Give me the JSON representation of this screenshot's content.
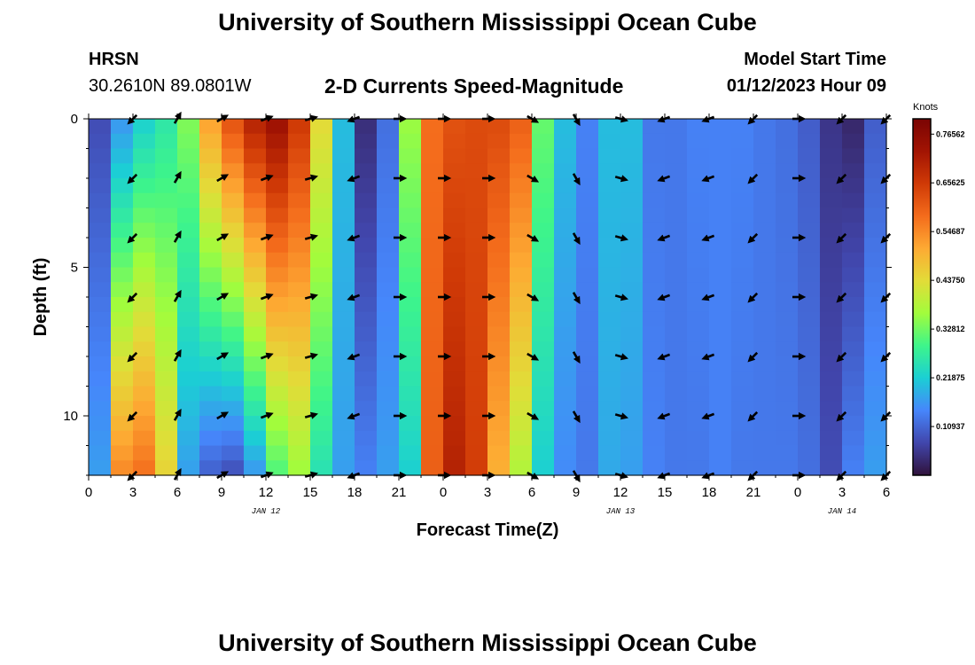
{
  "page": {
    "title_top": "University of Southern Mississippi Ocean Cube",
    "title_bottom": "University of Southern Mississippi Ocean Cube",
    "station": "HRSN",
    "coords": "30.2610N  89.0801W",
    "subtitle": "2-D Currents Speed-Magnitude",
    "model_start_label": "Model Start Time",
    "model_start_value": "01/12/2023 Hour 09"
  },
  "colors": {
    "colormap": [
      "#30123b",
      "#4146ac",
      "#4686fb",
      "#1bcfd4",
      "#3ef58a",
      "#a2fc3c",
      "#e2dc38",
      "#fdaa33",
      "#f46c1c",
      "#d03a06",
      "#a21403",
      "#7a0403"
    ]
  },
  "chart_data": {
    "type": "heatmap",
    "xlabel": "Forecast Time(Z)",
    "ylabel": "Depth (ft)",
    "colorbar_label": "Knots",
    "x_range": [
      0,
      54
    ],
    "y_range": [
      0,
      12
    ],
    "x_ticks": [
      0,
      3,
      6,
      9,
      12,
      15,
      18,
      21,
      24,
      27,
      30,
      33,
      36,
      39,
      42,
      45,
      48,
      51,
      54
    ],
    "x_tick_labels": [
      "0",
      "3",
      "6",
      "9",
      "12",
      "15",
      "18",
      "21",
      "0",
      "3",
      "6",
      "9",
      "12",
      "15",
      "18",
      "21",
      "0",
      "3",
      "6"
    ],
    "y_ticks": [
      0,
      5,
      10
    ],
    "y_tick_labels": [
      "0",
      "5",
      "10"
    ],
    "date_labels": [
      {
        "x": 12,
        "text": "JAN 12"
      },
      {
        "x": 36,
        "text": "JAN 13"
      },
      {
        "x": 51,
        "text": "JAN 14"
      }
    ],
    "colorbar": {
      "min": 0,
      "max": 0.8,
      "ticks": [
        0.10937,
        0.21875,
        0.32812,
        0.4375,
        0.54687,
        0.65625,
        0.76562
      ],
      "tick_labels": [
        "0.10937",
        "0.21875",
        "0.32812",
        "0.43750",
        "0.54687",
        "0.65625",
        "0.76562"
      ]
    },
    "depths": [
      0,
      0.5,
      1,
      1.5,
      2,
      2.5,
      3,
      3.5,
      4,
      4.5,
      5,
      5.5,
      6,
      6.5,
      7,
      7.5,
      8,
      8.5,
      9,
      9.5,
      10,
      10.5,
      11,
      11.5,
      12
    ],
    "times": [
      0,
      1.5,
      3,
      4.5,
      6,
      7.5,
      9,
      10.5,
      12,
      13.5,
      15,
      16.5,
      18,
      19.5,
      21,
      22.5,
      24,
      25.5,
      27,
      28.5,
      30,
      31.5,
      33,
      34.5,
      36,
      37.5,
      39,
      40.5,
      42,
      43.5,
      45,
      46.5,
      48,
      49.5,
      51,
      52.5,
      54
    ],
    "speed_profiles": [
      {
        "t": 0,
        "top": 0.08,
        "bottom": 0.17
      },
      {
        "t": 1.5,
        "top": 0.16,
        "bottom": 0.55
      },
      {
        "t": 3,
        "top": 0.22,
        "bottom": 0.58
      },
      {
        "t": 4.5,
        "top": 0.26,
        "bottom": 0.45
      },
      {
        "t": 6,
        "top": 0.34,
        "bottom": 0.17
      },
      {
        "t": 7.5,
        "top": 0.52,
        "bottom": 0.1
      },
      {
        "t": 9,
        "top": 0.62,
        "bottom": 0.08
      },
      {
        "t": 10.5,
        "top": 0.7,
        "bottom": 0.16
      },
      {
        "t": 12,
        "top": 0.74,
        "bottom": 0.3
      },
      {
        "t": 13.5,
        "top": 0.66,
        "bottom": 0.36
      },
      {
        "t": 15,
        "top": 0.44,
        "bottom": 0.25
      },
      {
        "t": 16.5,
        "top": 0.2,
        "bottom": 0.17
      },
      {
        "t": 18,
        "top": 0.04,
        "bottom": 0.14
      },
      {
        "t": 19.5,
        "top": 0.12,
        "bottom": 0.17
      },
      {
        "t": 21,
        "top": 0.36,
        "bottom": 0.22
      },
      {
        "t": 22.5,
        "top": 0.58,
        "bottom": 0.6
      },
      {
        "t": 24,
        "top": 0.62,
        "bottom": 0.7
      },
      {
        "t": 25.5,
        "top": 0.63,
        "bottom": 0.65
      },
      {
        "t": 27,
        "top": 0.63,
        "bottom": 0.5
      },
      {
        "t": 28.5,
        "top": 0.6,
        "bottom": 0.38
      },
      {
        "t": 30,
        "top": 0.32,
        "bottom": 0.22
      },
      {
        "t": 31.5,
        "top": 0.2,
        "bottom": 0.15
      },
      {
        "t": 33,
        "top": 0.14,
        "bottom": 0.13
      },
      {
        "t": 34.5,
        "top": 0.2,
        "bottom": 0.18
      },
      {
        "t": 36,
        "top": 0.2,
        "bottom": 0.17
      },
      {
        "t": 37.5,
        "top": 0.13,
        "bottom": 0.14
      },
      {
        "t": 39,
        "top": 0.13,
        "bottom": 0.13
      },
      {
        "t": 40.5,
        "top": 0.14,
        "bottom": 0.13
      },
      {
        "t": 42,
        "top": 0.14,
        "bottom": 0.14
      },
      {
        "t": 43.5,
        "top": 0.14,
        "bottom": 0.13
      },
      {
        "t": 45,
        "top": 0.13,
        "bottom": 0.13
      },
      {
        "t": 46.5,
        "top": 0.12,
        "bottom": 0.13
      },
      {
        "t": 48,
        "top": 0.1,
        "bottom": 0.12
      },
      {
        "t": 49.5,
        "top": 0.05,
        "bottom": 0.08
      },
      {
        "t": 51,
        "top": 0.03,
        "bottom": 0.14
      },
      {
        "t": 52.5,
        "top": 0.1,
        "bottom": 0.17
      },
      {
        "t": 54,
        "top": 0.18,
        "bottom": 0.22
      }
    ],
    "vector_depths": [
      0,
      2,
      4,
      6,
      8,
      10,
      12
    ],
    "vector_times": [
      0,
      3,
      6,
      9,
      12,
      15,
      18,
      21,
      24,
      27,
      30,
      33,
      36,
      39,
      42,
      45,
      48,
      51,
      54
    ],
    "vector_direction_deg": [
      {
        "t": 3,
        "deg": 225
      },
      {
        "t": 6,
        "deg": 60
      },
      {
        "t": 9,
        "deg": 30
      },
      {
        "t": 12,
        "deg": 20
      },
      {
        "t": 15,
        "deg": 15
      },
      {
        "t": 18,
        "deg": 200
      },
      {
        "t": 21,
        "deg": 0
      },
      {
        "t": 24,
        "deg": 0
      },
      {
        "t": 27,
        "deg": 0
      },
      {
        "t": 30,
        "deg": -30
      },
      {
        "t": 33,
        "deg": -60
      },
      {
        "t": 36,
        "deg": -15
      },
      {
        "t": 39,
        "deg": 200
      },
      {
        "t": 42,
        "deg": 200
      },
      {
        "t": 45,
        "deg": 225
      },
      {
        "t": 48,
        "deg": 0
      },
      {
        "t": 51,
        "deg": 225
      },
      {
        "t": 54,
        "deg": 225
      }
    ]
  }
}
